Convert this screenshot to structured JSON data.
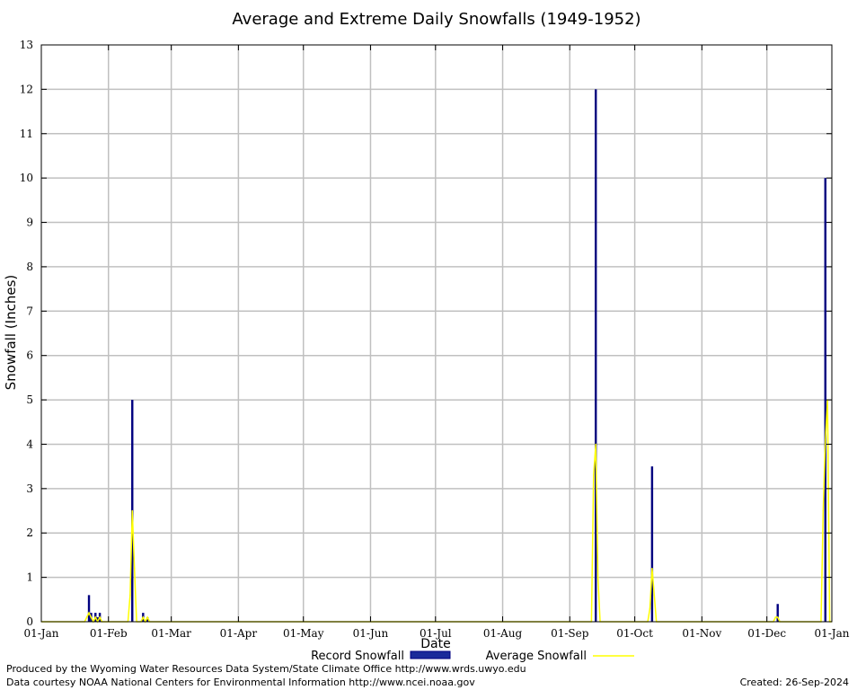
{
  "footer": {
    "credit_line1": "Produced by the Wyoming Water Resources Data System/State Climate Office http://www.wrds.uwyo.edu",
    "credit_line2": "Data courtesy NOAA National Centers for Environmental Information http://www.ncei.noaa.gov",
    "created": "Created:  26-Sep-2024"
  },
  "chart_data": {
    "type": "bar",
    "title": "Average and Extreme Daily Snowfalls (1949-1952)",
    "xlabel": "Date",
    "ylabel": "Snowfall (Inches)",
    "ylim": [
      0,
      13
    ],
    "yticks": [
      0,
      1,
      2,
      3,
      4,
      5,
      6,
      7,
      8,
      9,
      10,
      11,
      12,
      13
    ],
    "xlim_day": [
      1,
      366
    ],
    "xticks": [
      {
        "label": "01-Jan",
        "day": 1
      },
      {
        "label": "01-Feb",
        "day": 32
      },
      {
        "label": "01-Mar",
        "day": 61
      },
      {
        "label": "01-Apr",
        "day": 92
      },
      {
        "label": "01-May",
        "day": 122
      },
      {
        "label": "01-Jun",
        "day": 153
      },
      {
        "label": "01-Jul",
        "day": 183
      },
      {
        "label": "01-Aug",
        "day": 214
      },
      {
        "label": "01-Sep",
        "day": 245
      },
      {
        "label": "01-Oct",
        "day": 275
      },
      {
        "label": "01-Nov",
        "day": 306
      },
      {
        "label": "01-Dec",
        "day": 336
      },
      {
        "label": "01-Jan",
        "day": 366
      }
    ],
    "grid": true,
    "legend_position": "bottom",
    "colors": {
      "record": "#000080",
      "average": "#ffff00",
      "grid": "#c0c0c0"
    },
    "series": [
      {
        "name": "Record Snowfall",
        "points": [
          {
            "day": 23,
            "value": 0.6
          },
          {
            "day": 24,
            "value": 0.2
          },
          {
            "day": 26,
            "value": 0.2
          },
          {
            "day": 27,
            "value": 0.1
          },
          {
            "day": 28,
            "value": 0.2
          },
          {
            "day": 43,
            "value": 5.0
          },
          {
            "day": 48,
            "value": 0.2
          },
          {
            "day": 50,
            "value": 0.1
          },
          {
            "day": 257,
            "value": 12.0
          },
          {
            "day": 283,
            "value": 3.5
          },
          {
            "day": 341,
            "value": 0.4
          },
          {
            "day": 363,
            "value": 10.0
          }
        ]
      },
      {
        "name": "Average Snowfall",
        "points": [
          {
            "day": 21,
            "value": 0
          },
          {
            "day": 22,
            "value": 0.1
          },
          {
            "day": 23,
            "value": 0.2
          },
          {
            "day": 24,
            "value": 0.1
          },
          {
            "day": 25,
            "value": 0
          },
          {
            "day": 26,
            "value": 0.1
          },
          {
            "day": 27,
            "value": 0
          },
          {
            "day": 28,
            "value": 0.1
          },
          {
            "day": 29,
            "value": 0
          },
          {
            "day": 41,
            "value": 0
          },
          {
            "day": 42,
            "value": 0.6
          },
          {
            "day": 43,
            "value": 2.5
          },
          {
            "day": 44,
            "value": 1.2
          },
          {
            "day": 45,
            "value": 0
          },
          {
            "day": 47,
            "value": 0
          },
          {
            "day": 48,
            "value": 0.1
          },
          {
            "day": 49,
            "value": 0
          },
          {
            "day": 50,
            "value": 0.1
          },
          {
            "day": 51,
            "value": 0
          },
          {
            "day": 255,
            "value": 0
          },
          {
            "day": 256,
            "value": 3.3
          },
          {
            "day": 257,
            "value": 4.0
          },
          {
            "day": 258,
            "value": 1.0
          },
          {
            "day": 259,
            "value": 0
          },
          {
            "day": 281,
            "value": 0
          },
          {
            "day": 282,
            "value": 0.3
          },
          {
            "day": 283,
            "value": 1.2
          },
          {
            "day": 284,
            "value": 0.6
          },
          {
            "day": 285,
            "value": 0
          },
          {
            "day": 339,
            "value": 0
          },
          {
            "day": 340,
            "value": 0.1
          },
          {
            "day": 341,
            "value": 0.1
          },
          {
            "day": 342,
            "value": 0
          },
          {
            "day": 361,
            "value": 0
          },
          {
            "day": 362,
            "value": 2.5
          },
          {
            "day": 363,
            "value": 4.1
          },
          {
            "day": 364,
            "value": 5.0
          },
          {
            "day": 365,
            "value": 0
          }
        ]
      }
    ]
  }
}
